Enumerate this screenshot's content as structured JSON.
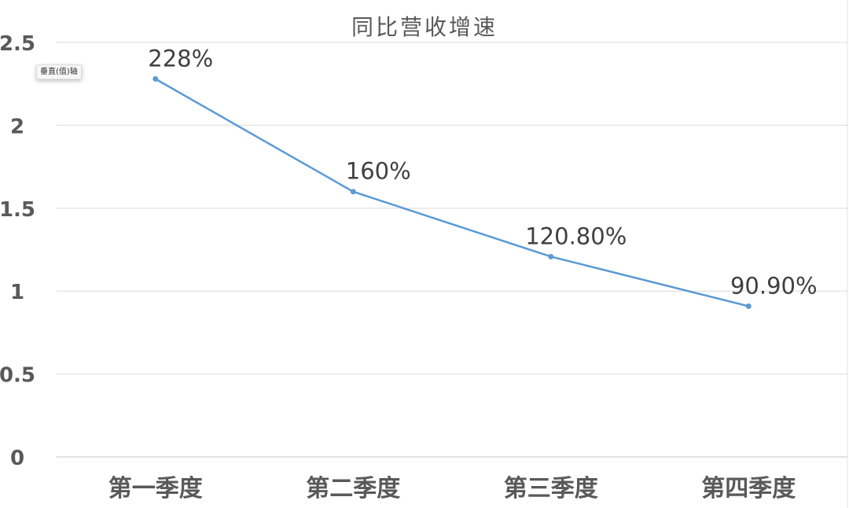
{
  "chart_data": {
    "type": "line",
    "title": "同比营收增速",
    "categories": [
      "第一季度",
      "第二季度",
      "第三季度",
      "第四季度"
    ],
    "series": [
      {
        "values": [
          2.28,
          1.6,
          1.208,
          0.909
        ],
        "color": "#5b9bd5"
      }
    ],
    "data_labels": [
      "228%",
      "160%",
      "120.80%",
      "90.90%"
    ],
    "yticks": [
      "0",
      "0.5",
      "1",
      "1.5",
      "2",
      "2.5"
    ],
    "ylim": [
      0,
      2.5
    ],
    "grid": true,
    "legend": "none"
  },
  "tooltip": "垂直(值)轴"
}
